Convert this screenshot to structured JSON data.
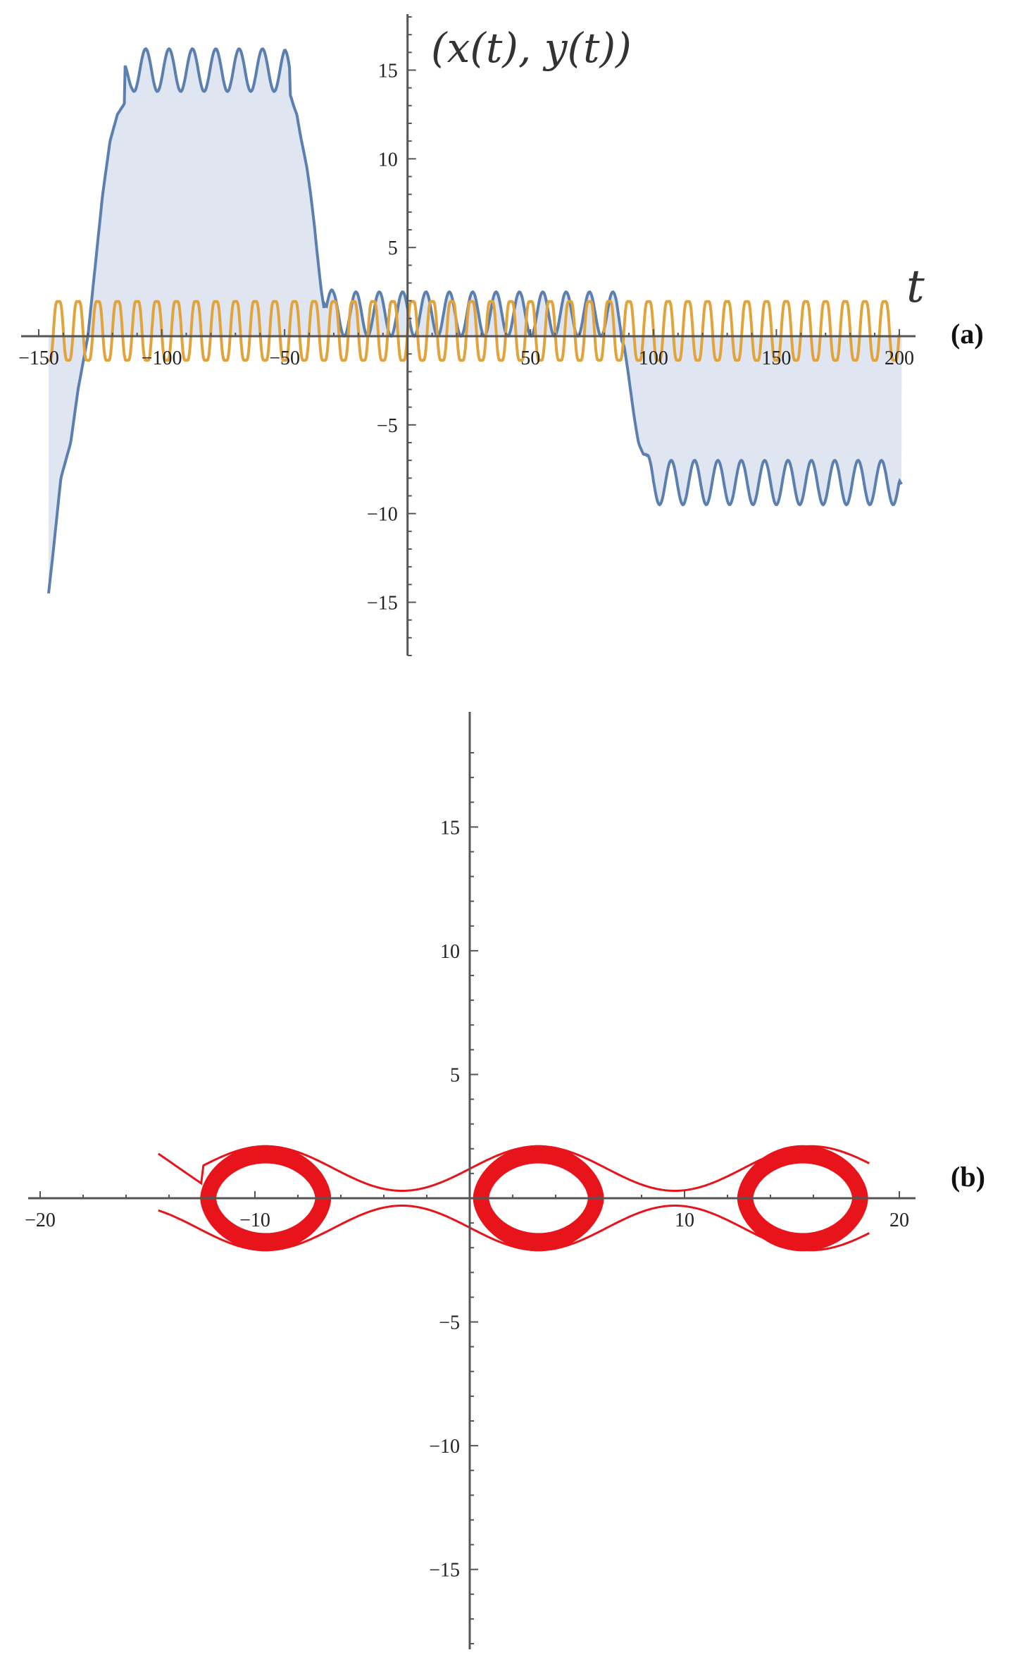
{
  "figure": {
    "panel_a_label": "(a)",
    "panel_b_label": "(b)"
  },
  "chart_data": [
    {
      "type": "line",
      "panel": "(a)",
      "title": "",
      "axis_label_y": "(x(t), y(t))",
      "axis_label_x": "t",
      "xlim": [
        -150,
        200
      ],
      "ylim": [
        -18,
        18
      ],
      "x_ticks": [
        -150,
        -100,
        -50,
        50,
        100,
        150,
        200
      ],
      "y_ticks": [
        -15,
        -10,
        -5,
        5,
        10,
        15
      ],
      "grid": false,
      "legend": "none",
      "series": [
        {
          "color": "#5b7fae",
          "fill_to_axis": true,
          "fill_color": "#dfe6f1",
          "oscillation_period": 9.5,
          "points": [
            [
              -146,
              -14.5
            ],
            [
              -144,
              -12
            ],
            [
              -141,
              -8
            ],
            [
              -137,
              -6
            ],
            [
              -134,
              -3
            ],
            [
              -130,
              0
            ],
            [
              -127,
              4
            ],
            [
              -124,
              8
            ],
            [
              -121,
              11
            ],
            [
              -118,
              12.5
            ],
            [
              -112,
              13.8
            ],
            [
              -50,
              13.8
            ],
            [
              -45,
              12.5
            ],
            [
              -41,
              9
            ],
            [
              -38,
              6
            ],
            [
              -35,
              2.5
            ],
            [
              -33,
              0.5
            ],
            [
              -30,
              0
            ],
            [
              85,
              0
            ],
            [
              88,
              -0.5
            ],
            [
              91,
              -3
            ],
            [
              94,
              -5.5
            ],
            [
              96,
              -6.5
            ],
            [
              100,
              -7
            ],
            [
              200,
              -7
            ],
            [
              201,
              -8
            ]
          ]
        },
        {
          "color": "#e2a33a",
          "fill_to_axis": false,
          "oscillation_period": 8,
          "amplitude": 2,
          "x_range": [
            -146,
            200
          ]
        }
      ]
    },
    {
      "type": "line",
      "panel": "(b)",
      "title": "",
      "xlim": [
        -20,
        20
      ],
      "ylim": [
        -18,
        18
      ],
      "x_ticks": [
        -20,
        -10,
        10,
        20
      ],
      "y_ticks": [
        -15,
        -10,
        -5,
        5,
        10,
        15
      ],
      "grid": false,
      "legend": "none",
      "series": [
        {
          "color": "#e8141b",
          "description_points": [
            [
              -14.5,
              1.8
            ],
            [
              -12.5,
              0.6
            ],
            [
              -9.5,
              2.1
            ],
            [
              -6.5,
              0.3
            ],
            [
              -3.2,
              2.1
            ],
            [
              0,
              0.8
            ],
            [
              3.2,
              2.1
            ],
            [
              6.3,
              0.3
            ],
            [
              9.5,
              2.1
            ],
            [
              12.7,
              0.3
            ],
            [
              15.5,
              2.1
            ],
            [
              18.5,
              0
            ],
            [
              15.5,
              -2.1
            ],
            [
              12.7,
              -0.3
            ],
            [
              9.5,
              -2.1
            ],
            [
              6.3,
              -0.3
            ],
            [
              3.2,
              -2.1
            ],
            [
              0,
              -0.3
            ],
            [
              -3.2,
              -2.1
            ],
            [
              -6.5,
              -0.3
            ],
            [
              -9.5,
              -2.1
            ],
            [
              -12.5,
              0
            ]
          ],
          "loop_centers": [
            -9.5,
            3.2,
            15.5
          ],
          "loop_half_width": 3,
          "loop_height": 2.1
        }
      ]
    }
  ]
}
